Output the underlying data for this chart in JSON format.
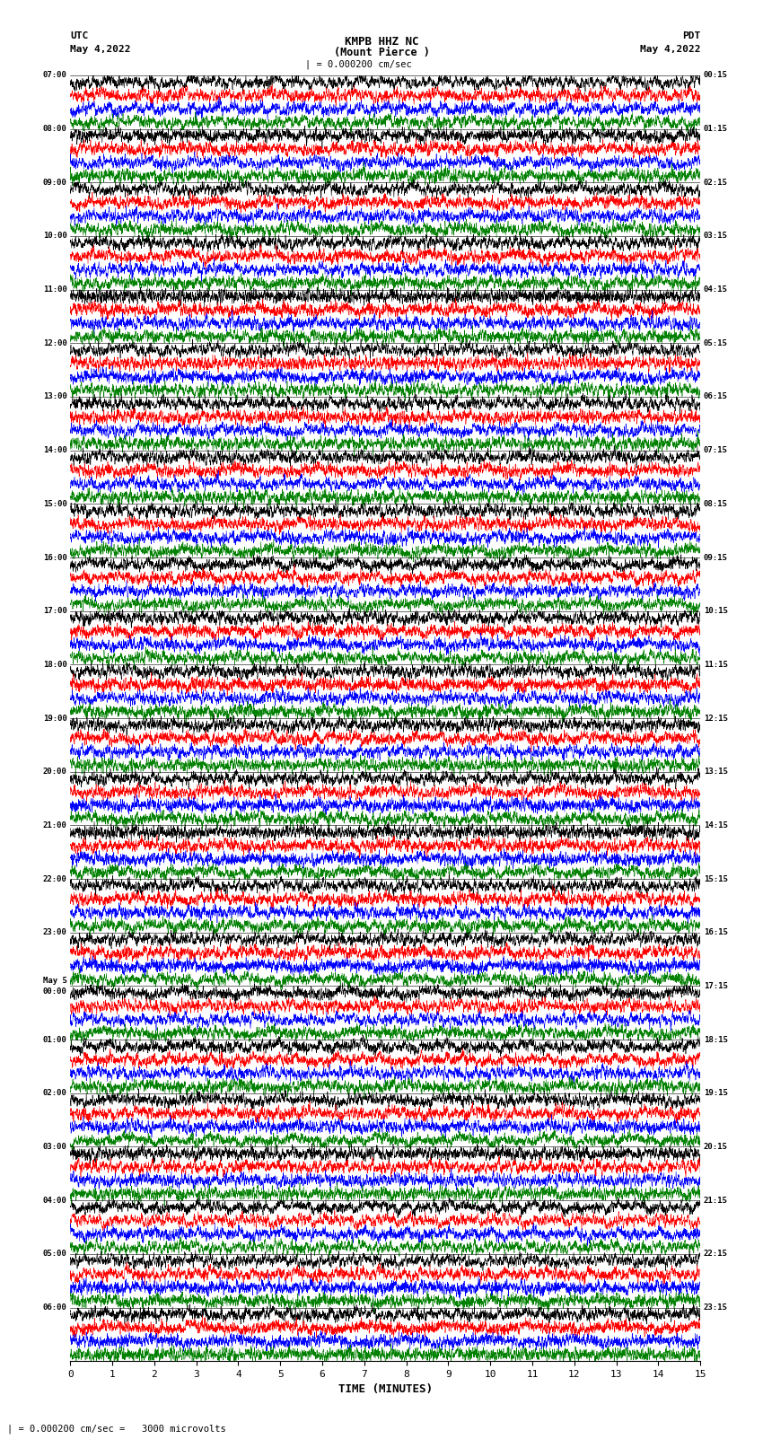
{
  "title_line1": "KMPB HHZ NC",
  "title_line2": "(Mount Pierce )",
  "title_scale": "| = 0.000200 cm/sec",
  "left_header_line1": "UTC",
  "left_header_line2": "May 4,2022",
  "right_header_line1": "PDT",
  "right_header_line2": "May 4,2022",
  "xlabel": "TIME (MINUTES)",
  "bottom_note": "| = 0.000200 cm/sec =   3000 microvolts",
  "left_times": [
    "07:00",
    "08:00",
    "09:00",
    "10:00",
    "11:00",
    "12:00",
    "13:00",
    "14:00",
    "15:00",
    "16:00",
    "17:00",
    "18:00",
    "19:00",
    "20:00",
    "21:00",
    "22:00",
    "23:00",
    "May 5\n00:00",
    "01:00",
    "02:00",
    "03:00",
    "04:00",
    "05:00",
    "06:00"
  ],
  "right_times": [
    "00:15",
    "01:15",
    "02:15",
    "03:15",
    "04:15",
    "05:15",
    "06:15",
    "07:15",
    "08:15",
    "09:15",
    "10:15",
    "11:15",
    "12:15",
    "13:15",
    "14:15",
    "15:15",
    "16:15",
    "17:15",
    "18:15",
    "19:15",
    "20:15",
    "21:15",
    "22:15",
    "23:15"
  ],
  "n_rows": 24,
  "traces_per_row": 4,
  "colors": [
    "black",
    "red",
    "blue",
    "green"
  ],
  "bg_color": "white",
  "fig_width": 8.5,
  "fig_height": 16.13,
  "xlim": [
    0,
    15
  ],
  "xticks": [
    0,
    1,
    2,
    3,
    4,
    5,
    6,
    7,
    8,
    9,
    10,
    11,
    12,
    13,
    14,
    15
  ],
  "noise_seed": 42
}
